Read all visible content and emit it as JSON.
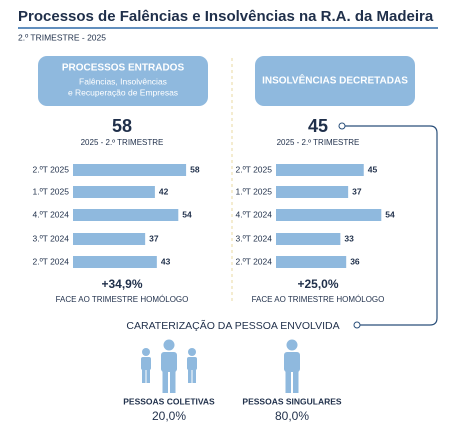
{
  "title": "Processos de Falências e Insolvências na R.A. da Madeira",
  "subtitle": "2.º TRIMESTRE - 2025",
  "chart_data": [
    {
      "type": "bar",
      "title": "PROCESSOS ENTRADOS",
      "subtitle": [
        "Falências, Insolvências",
        "e Recuperação de Empresas"
      ],
      "total": 58,
      "total_label": "2025 - 2.º TRIMESTRE",
      "categories": [
        "2.ºT 2025",
        "1.ºT 2025",
        "4.ºT 2024",
        "3.ºT 2024",
        "2.ºT 2024"
      ],
      "values": [
        58,
        42,
        54,
        37,
        43
      ],
      "color": "#8fb9de",
      "change": "+34,9%",
      "change_label": "FACE AO TRIMESTRE HOMÓLOGO"
    },
    {
      "type": "bar",
      "title": "INSOLVÊNCIAS DECRETADAS",
      "total": 45,
      "total_label": "2025 - 2.º TRIMESTRE",
      "categories": [
        "2.ºT 2025",
        "1.ºT 2025",
        "4.ºT 2024",
        "3.ºT 2024",
        "2.ºT 2024"
      ],
      "values": [
        45,
        37,
        54,
        33,
        36
      ],
      "color": "#8fb9de",
      "change": "+25,0%",
      "change_label": "FACE AO TRIMESTRE HOMÓLOGO"
    }
  ],
  "characterization": {
    "title": "CARATERIZAÇÃO DA PESSOA ENVOLVIDA",
    "groups": [
      {
        "label": "PESSOAS COLETIVAS",
        "value": "20,0%"
      },
      {
        "label": "PESSOAS SINGULARES",
        "value": "80,0%"
      }
    ]
  }
}
